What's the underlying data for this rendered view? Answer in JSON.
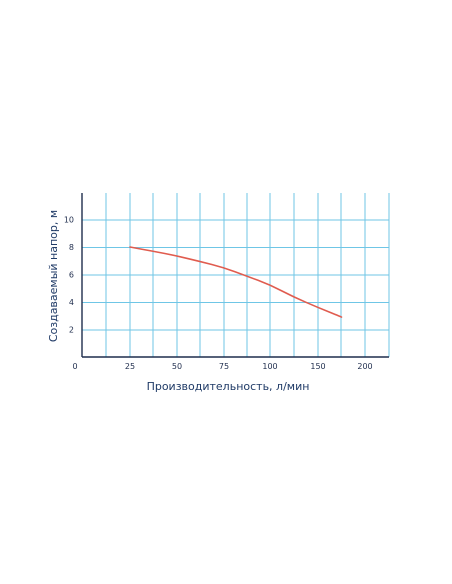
{
  "chart_data": {
    "type": "line",
    "title": "",
    "xlabel": "Производительность, л/мин",
    "ylabel": "Создаваемый напор, м",
    "xlim": [
      0,
      210
    ],
    "ylim": [
      0,
      12
    ],
    "x_ticks": [
      0,
      25,
      50,
      75,
      100,
      150,
      200
    ],
    "x_tick_labels": [
      "0",
      "25",
      "50",
      "75",
      "100",
      "150",
      "200"
    ],
    "y_ticks": [
      2,
      4,
      6,
      8,
      10
    ],
    "y_tick_labels": [
      "2",
      "4",
      "6",
      "8",
      "10"
    ],
    "grid": true,
    "legend": "none",
    "series": [
      {
        "color": "#e05c4f",
        "x": [
          25,
          37,
          50,
          62,
          75,
          87,
          100,
          125,
          150,
          175
        ],
        "y": [
          8.0,
          7.7,
          7.35,
          6.95,
          6.5,
          5.9,
          5.25,
          4.35,
          3.6,
          2.9
        ]
      }
    ],
    "colors": {
      "grid": "#6fc6e6",
      "axis": "#1f2d4d",
      "text": "#1f3a66"
    }
  }
}
